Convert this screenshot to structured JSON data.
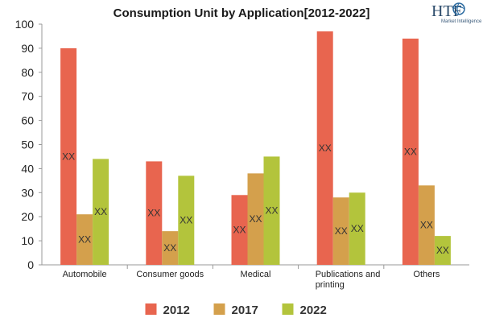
{
  "chart_data": {
    "type": "bar",
    "title": "Consumption Unit by  Application[2012-2022]",
    "categories": [
      [
        "Automobile"
      ],
      [
        "Consumer goods"
      ],
      [
        "Medical"
      ],
      [
        "Publications and",
        "printing"
      ],
      [
        "Others"
      ]
    ],
    "series": [
      {
        "name": "2012",
        "color": "#e8654f",
        "values": [
          90,
          43,
          29,
          97,
          94
        ],
        "labels": [
          "XX",
          "XX",
          "XX",
          "XX",
          "XX"
        ]
      },
      {
        "name": "2017",
        "color": "#d4a04c",
        "values": [
          21,
          14,
          38,
          28,
          33
        ],
        "labels": [
          "XX",
          "XX",
          "XX",
          "XX",
          "XX"
        ]
      },
      {
        "name": "2022",
        "color": "#b3c43c",
        "values": [
          44,
          37,
          45,
          30,
          12
        ],
        "labels": [
          "XX",
          "XX",
          "XX",
          "XX",
          "XX"
        ]
      }
    ],
    "ylim": [
      0,
      100
    ],
    "yticks": [
      0,
      10,
      20,
      30,
      40,
      50,
      60,
      70,
      80,
      90,
      100
    ],
    "grid": false,
    "legend": "bottom"
  },
  "logo": {
    "main": "HTF",
    "sub": "Market Intelligence"
  }
}
